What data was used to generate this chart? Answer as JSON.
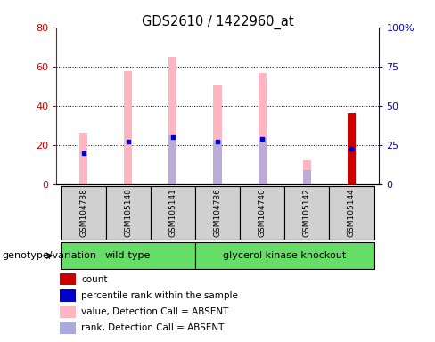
{
  "title": "GDS2610 / 1422960_at",
  "samples": [
    "GSM104738",
    "GSM105140",
    "GSM105141",
    "GSM104736",
    "GSM104740",
    "GSM105142",
    "GSM105144"
  ],
  "pink_bar_values": [
    26.5,
    57.5,
    65.0,
    50.5,
    57.0,
    12.5,
    0
  ],
  "light_blue_bar_values": [
    0,
    0,
    25.0,
    22.5,
    23.5,
    7.5,
    0
  ],
  "blue_dot_values_pct": [
    20.0,
    27.5,
    30.0,
    27.5,
    29.0,
    0,
    23.0
  ],
  "red_bar_values": [
    0,
    0,
    0,
    0,
    0,
    0,
    36.5
  ],
  "blue_square_pct": [
    0,
    0,
    0,
    0,
    0,
    0,
    23.0
  ],
  "ylim_left": [
    0,
    80
  ],
  "ylim_right": [
    0,
    100
  ],
  "yticks_left": [
    0,
    20,
    40,
    60,
    80
  ],
  "yticks_right": [
    0,
    25,
    50,
    75,
    100
  ],
  "ytick_labels_right": [
    "0",
    "25",
    "50",
    "75",
    "100%"
  ],
  "left_axis_color": "#cc0000",
  "right_axis_color": "#0000cc",
  "pink_color": "#ffb6c1",
  "light_blue_color": "#aaaadd",
  "red_color": "#cc0000",
  "blue_color": "#0000cc",
  "bar_width": 0.18,
  "legend_items": [
    {
      "label": "count",
      "color": "#cc0000"
    },
    {
      "label": "percentile rank within the sample",
      "color": "#0000cc"
    },
    {
      "label": "value, Detection Call = ABSENT",
      "color": "#ffb6c1"
    },
    {
      "label": "rank, Detection Call = ABSENT",
      "color": "#aaaadd"
    }
  ],
  "group_label": "genotype/variation",
  "wt_indices": [
    0,
    1,
    2
  ],
  "gk_indices": [
    3,
    4,
    5,
    6
  ],
  "wt_label": "wild-type",
  "gk_label": "glycerol kinase knockout",
  "group_box_color": "#66dd66",
  "sample_box_color": "#d0d0d0",
  "grid_color": "black",
  "grid_linestyle": ":",
  "grid_linewidth": 0.7
}
